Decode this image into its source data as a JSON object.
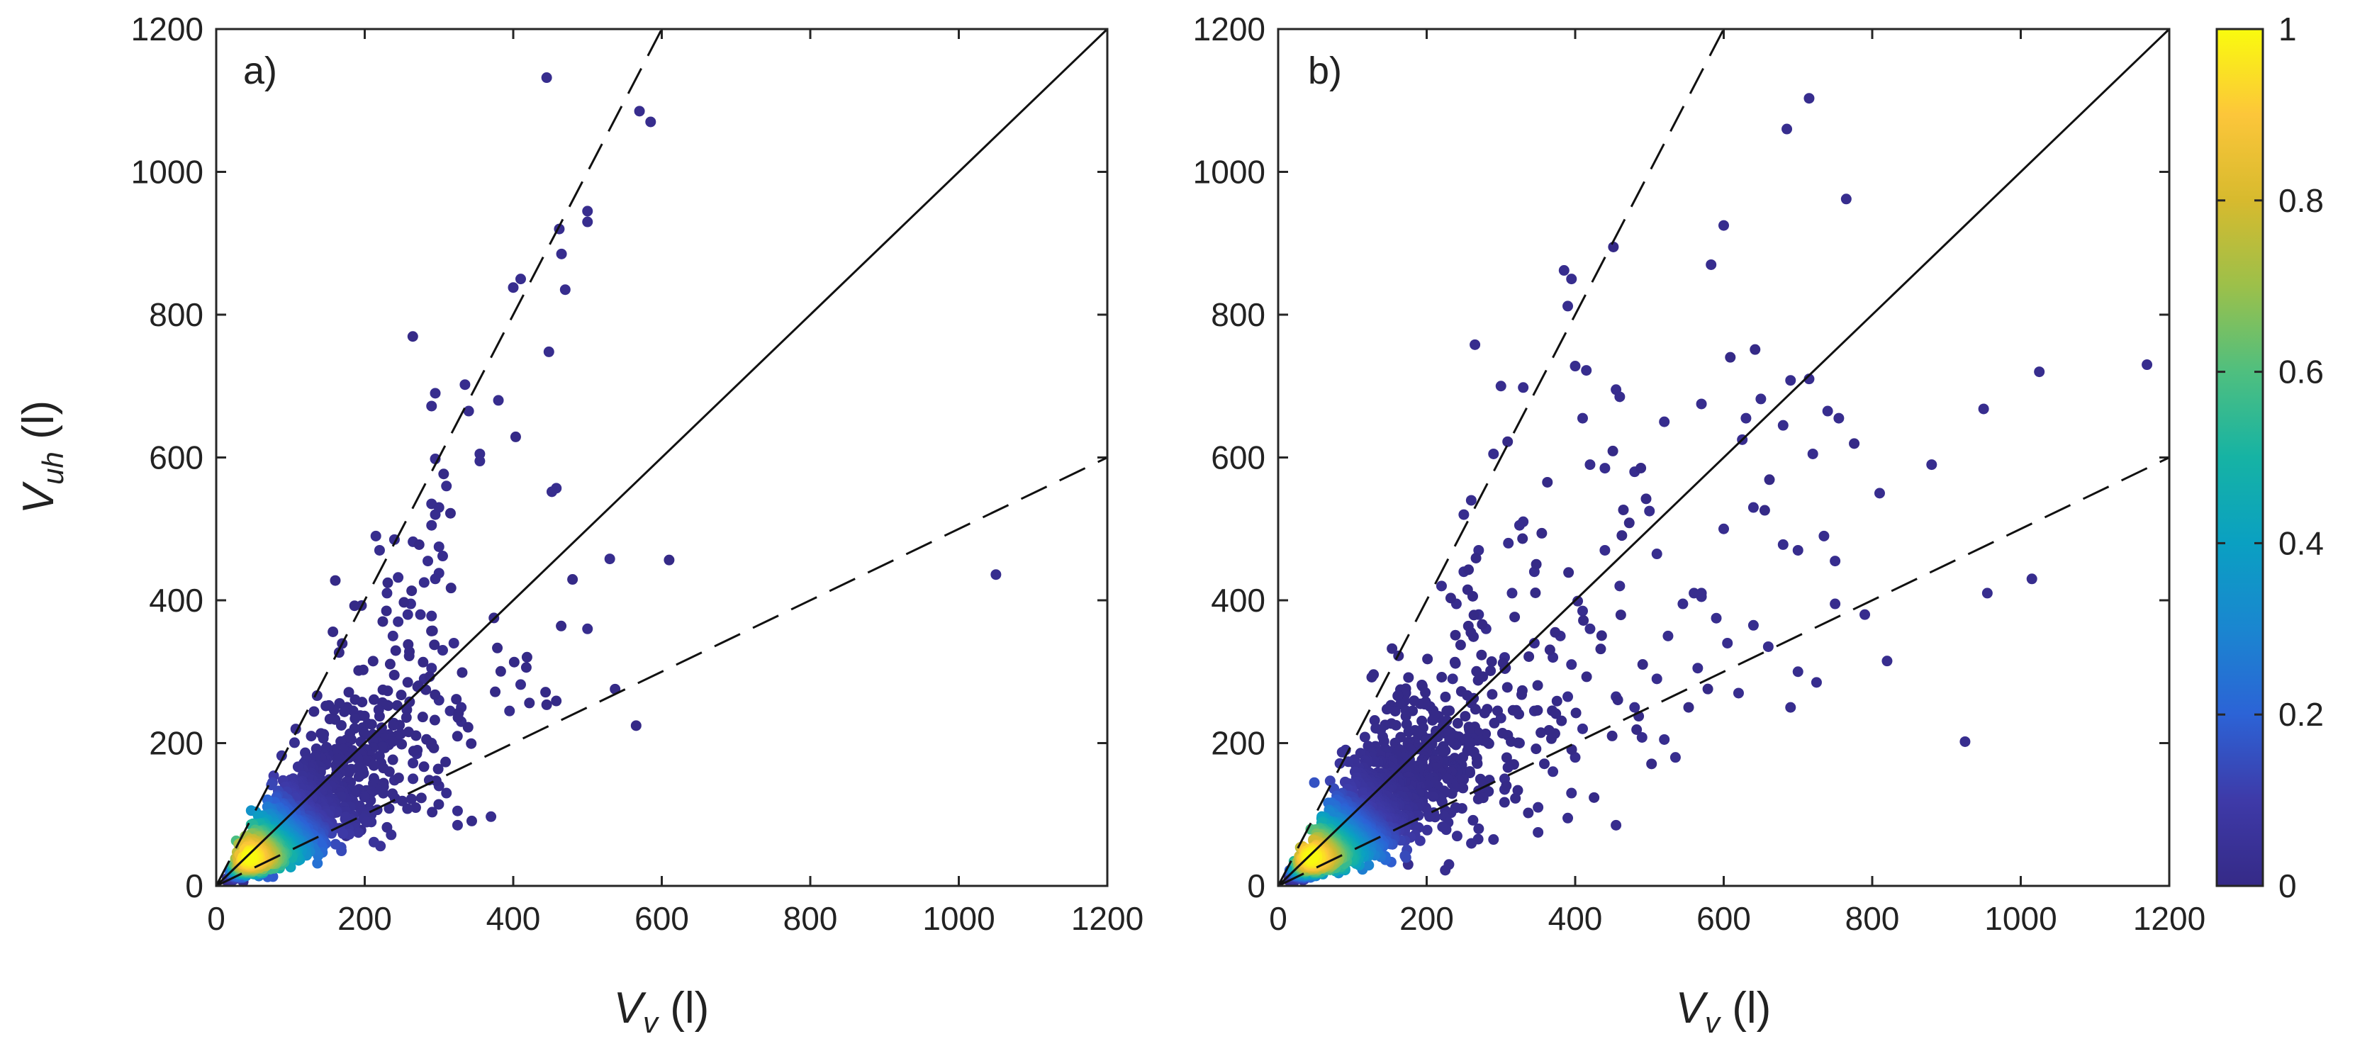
{
  "figure": {
    "colorbar": {
      "ticks": [
        0,
        0.2,
        0.4,
        0.6,
        0.8,
        1
      ],
      "tick_labels": [
        "0",
        "0.2",
        "0.4",
        "0.6",
        "0.8",
        "1"
      ],
      "colormap": [
        "#352a87",
        "#3e3aa8",
        "#2c63d6",
        "#1a86d0",
        "#0aa0c2",
        "#16b3a4",
        "#4fbf7f",
        "#9cc04a",
        "#d7ba2e",
        "#fcc63a",
        "#f9fb0e"
      ]
    }
  },
  "chart_data": [
    {
      "type": "scatter",
      "panel_label": "a)",
      "xlabel": {
        "main": "V",
        "sub": "v",
        "unit": " (l)"
      },
      "ylabel": {
        "main": "V",
        "sub": "uh",
        "unit": " (l)"
      },
      "xlim": [
        0,
        1200
      ],
      "ylim": [
        0,
        1200
      ],
      "xticks": [
        0,
        200,
        400,
        600,
        800,
        1000,
        1200
      ],
      "yticks": [
        0,
        200,
        400,
        600,
        800,
        1000,
        1200
      ],
      "reference_lines": [
        {
          "style": "solid",
          "slope": 1
        },
        {
          "style": "dashed",
          "slope": 2
        },
        {
          "style": "dashed",
          "slope": 0.5
        }
      ],
      "points": [
        [
          445,
          1132
        ],
        [
          570,
          1085
        ],
        [
          585,
          1070
        ],
        [
          500,
          945
        ],
        [
          500,
          930
        ],
        [
          462,
          920
        ],
        [
          465,
          885
        ],
        [
          470,
          835
        ],
        [
          400,
          838
        ],
        [
          410,
          850
        ],
        [
          448,
          748
        ],
        [
          335,
          702
        ],
        [
          295,
          690
        ],
        [
          290,
          672
        ],
        [
          380,
          680
        ],
        [
          340,
          665
        ],
        [
          355,
          605
        ],
        [
          355,
          595
        ],
        [
          295,
          598
        ],
        [
          310,
          560
        ],
        [
          458,
          557
        ],
        [
          452,
          552
        ],
        [
          290,
          535
        ],
        [
          300,
          530
        ],
        [
          295,
          520
        ],
        [
          290,
          505
        ],
        [
          215,
          490
        ],
        [
          240,
          485
        ],
        [
          220,
          470
        ],
        [
          265,
          482
        ],
        [
          300,
          475
        ],
        [
          305,
          462
        ],
        [
          285,
          455
        ],
        [
          300,
          438
        ],
        [
          295,
          430
        ],
        [
          280,
          425
        ],
        [
          245,
          432
        ],
        [
          230,
          410
        ],
        [
          262,
          395
        ],
        [
          275,
          380
        ],
        [
          258,
          380
        ],
        [
          290,
          378
        ],
        [
          245,
          370
        ],
        [
          238,
          350
        ],
        [
          530,
          458
        ],
        [
          1050,
          436
        ],
        [
          500,
          360
        ],
        [
          320,
          340
        ],
        [
          305,
          330
        ],
        [
          290,
          305
        ],
        [
          410,
          282
        ],
        [
          280,
          290
        ],
        [
          300,
          260
        ],
        [
          330,
          250
        ],
        [
          315,
          245
        ],
        [
          330,
          230
        ],
        [
          290,
          200
        ],
        [
          270,
          185
        ],
        [
          265,
          172
        ],
        [
          240,
          148
        ],
        [
          265,
          150
        ],
        [
          310,
          130
        ],
        [
          300,
          140
        ],
        [
          325,
          105
        ],
        [
          370,
          97
        ],
        [
          325,
          85
        ],
        [
          230,
          82
        ],
        [
          205,
          90
        ],
        [
          195,
          78
        ],
        [
          175,
          70
        ],
        [
          395,
          245
        ]
      ],
      "density_cluster": {
        "center": [
          95,
          75
        ],
        "spread": [
          70,
          60
        ],
        "count": 1400
      }
    },
    {
      "type": "scatter",
      "panel_label": "b)",
      "xlabel": {
        "main": "V",
        "sub": "v",
        "unit": " (l)"
      },
      "ylabel": {
        "main": "V",
        "sub": "uh",
        "unit": " (l)"
      },
      "xlim": [
        0,
        1200
      ],
      "ylim": [
        0,
        1200
      ],
      "xticks": [
        0,
        200,
        400,
        600,
        800,
        1000,
        1200
      ],
      "yticks": [
        0,
        200,
        400,
        600,
        800,
        1000,
        1200
      ],
      "reference_lines": [
        {
          "style": "solid",
          "slope": 1
        },
        {
          "style": "dashed",
          "slope": 2
        },
        {
          "style": "dashed",
          "slope": 0.5
        }
      ],
      "points": [
        [
          715,
          1103
        ],
        [
          685,
          1060
        ],
        [
          765,
          962
        ],
        [
          600,
          925
        ],
        [
          583,
          870
        ],
        [
          385,
          862
        ],
        [
          395,
          850
        ],
        [
          390,
          812
        ],
        [
          265,
          758
        ],
        [
          400,
          728
        ],
        [
          415,
          722
        ],
        [
          715,
          710
        ],
        [
          690,
          708
        ],
        [
          1025,
          720
        ],
        [
          1170,
          730
        ],
        [
          740,
          665
        ],
        [
          755,
          655
        ],
        [
          950,
          668
        ],
        [
          300,
          700
        ],
        [
          330,
          698
        ],
        [
          455,
          695
        ],
        [
          460,
          685
        ],
        [
          650,
          682
        ],
        [
          570,
          675
        ],
        [
          630,
          655
        ],
        [
          680,
          645
        ],
        [
          720,
          605
        ],
        [
          880,
          590
        ],
        [
          625,
          625
        ],
        [
          520,
          650
        ],
        [
          410,
          655
        ],
        [
          420,
          590
        ],
        [
          290,
          605
        ],
        [
          600,
          500
        ],
        [
          640,
          530
        ],
        [
          810,
          550
        ],
        [
          700,
          470
        ],
        [
          680,
          478
        ],
        [
          750,
          455
        ],
        [
          750,
          395
        ],
        [
          790,
          380
        ],
        [
          735,
          490
        ],
        [
          480,
          580
        ],
        [
          440,
          585
        ],
        [
          500,
          525
        ],
        [
          510,
          465
        ],
        [
          560,
          410
        ],
        [
          570,
          405
        ],
        [
          590,
          375
        ],
        [
          605,
          340
        ],
        [
          640,
          365
        ],
        [
          660,
          335
        ],
        [
          700,
          300
        ],
        [
          620,
          270
        ],
        [
          725,
          285
        ],
        [
          690,
          250
        ],
        [
          820,
          315
        ],
        [
          955,
          410
        ],
        [
          1015,
          430
        ],
        [
          925,
          202
        ],
        [
          570,
          410
        ],
        [
          545,
          395
        ],
        [
          525,
          350
        ],
        [
          565,
          305
        ],
        [
          510,
          290
        ],
        [
          480,
          250
        ],
        [
          455,
          265
        ],
        [
          490,
          208
        ],
        [
          520,
          205
        ],
        [
          535,
          180
        ],
        [
          410,
          220
        ],
        [
          400,
          180
        ],
        [
          370,
          160
        ],
        [
          395,
          130
        ],
        [
          390,
          95
        ],
        [
          350,
          75
        ],
        [
          455,
          85
        ],
        [
          305,
          150
        ],
        [
          345,
          440
        ],
        [
          330,
          510
        ],
        [
          325,
          505
        ],
        [
          310,
          480
        ],
        [
          440,
          470
        ],
        [
          460,
          420
        ],
        [
          410,
          385
        ],
        [
          420,
          360
        ],
        [
          380,
          350
        ],
        [
          370,
          320
        ],
        [
          345,
          340
        ],
        [
          395,
          310
        ],
        [
          390,
          265
        ],
        [
          345,
          245
        ],
        [
          300,
          235
        ],
        [
          260,
          540
        ],
        [
          250,
          520
        ],
        [
          270,
          470
        ],
        [
          250,
          440
        ],
        [
          220,
          420
        ],
        [
          240,
          395
        ],
        [
          270,
          380
        ],
        [
          280,
          360
        ],
        [
          315,
          410
        ],
        [
          235,
          290
        ],
        [
          305,
          320
        ],
        [
          230,
          30
        ],
        [
          225,
          22
        ],
        [
          270,
          80
        ],
        [
          290,
          65
        ],
        [
          175,
          30
        ],
        [
          350,
          110
        ],
        [
          325,
          200
        ],
        [
          305,
          135
        ]
      ],
      "density_cluster": {
        "center": [
          100,
          75
        ],
        "spread": [
          85,
          70
        ],
        "count": 1800
      }
    }
  ]
}
